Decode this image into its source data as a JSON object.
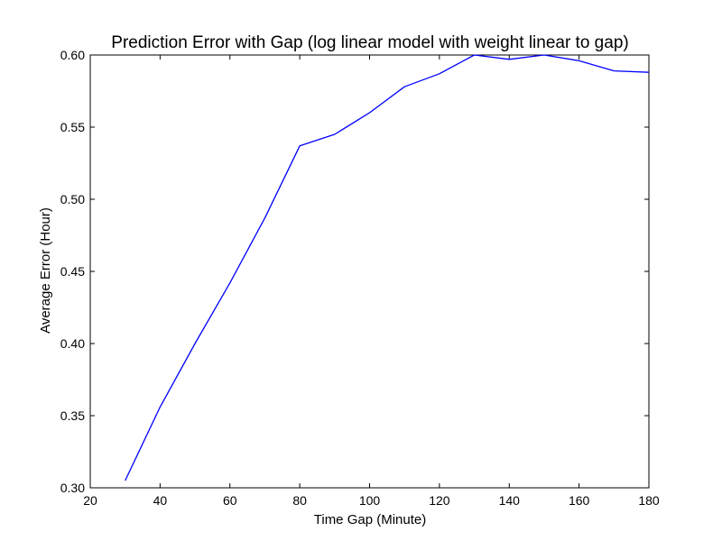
{
  "chart_data": {
    "type": "line",
    "title": "Prediction Error with Gap (log linear model with weight linear to gap)",
    "xlabel": "Time Gap (Minute)",
    "ylabel": "Average Error (Hour)",
    "xlim": [
      20,
      180
    ],
    "ylim": [
      0.3,
      0.6
    ],
    "xticks": [
      "20",
      "40",
      "60",
      "80",
      "100",
      "120",
      "140",
      "160",
      "180"
    ],
    "yticks": [
      "0.30",
      "0.35",
      "0.40",
      "0.45",
      "0.50",
      "0.55",
      "0.60"
    ],
    "grid": false,
    "series": [
      {
        "color": "#0000ff",
        "x": [
          30,
          40,
          50,
          60,
          70,
          80,
          90,
          100,
          110,
          120,
          130,
          140,
          150,
          160,
          170,
          180
        ],
        "y": [
          0.305,
          0.356,
          0.4,
          0.442,
          0.487,
          0.537,
          0.545,
          0.56,
          0.578,
          0.587,
          0.6,
          0.597,
          0.6,
          0.596,
          0.589,
          0.588
        ]
      }
    ]
  }
}
